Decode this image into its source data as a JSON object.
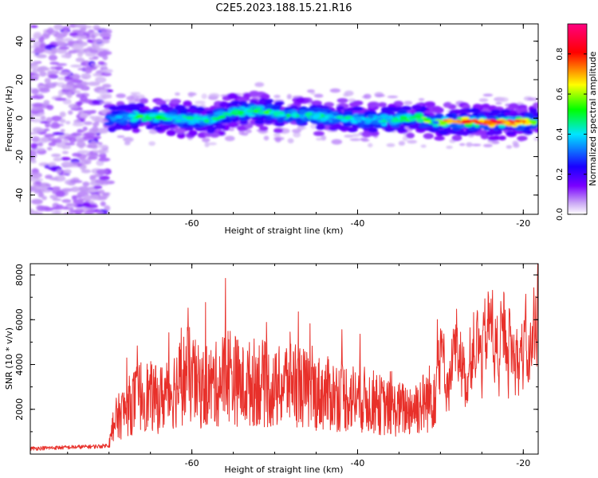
{
  "figure": {
    "title": "C2E5.2023.188.15.21.R16"
  },
  "chart_data": [
    {
      "type": "heatmap",
      "title": "",
      "xlabel": "Height of straight line (km)",
      "ylabel": "Frequency (Hz)",
      "xlim": [
        -79.5,
        -18.2
      ],
      "ylim": [
        -50,
        49
      ],
      "x_ticks": [
        "-60",
        "-40",
        "-20"
      ],
      "y_ticks": [
        "-40",
        "-20",
        "0",
        "20",
        "40"
      ],
      "grid": false,
      "colorbar": {
        "label": "Normalized spectral amplitude",
        "range": [
          0,
          0.95
        ],
        "ticks": [
          "0.0",
          "0.2",
          "0.4",
          "0.6",
          "0.8"
        ],
        "colors": [
          "#ffffff",
          "#c9a6f5",
          "#7a00ff",
          "#1a00ff",
          "#00e5ff",
          "#00ff00",
          "#ffff00",
          "#ff0000",
          "#ff0080"
        ]
      },
      "signal_track": {
        "x": [
          -69,
          -66,
          -62,
          -58,
          -55,
          -52,
          -49,
          -45,
          -41,
          -37,
          -33,
          -30,
          -27,
          -24,
          -21,
          -18.5
        ],
        "freq": [
          0,
          1,
          0,
          -1,
          3,
          4,
          2,
          1,
          0,
          -1,
          0,
          -2,
          -2,
          -2,
          -2,
          -2
        ],
        "amplitude": [
          0.35,
          0.55,
          0.45,
          0.45,
          0.5,
          0.55,
          0.5,
          0.45,
          0.45,
          0.45,
          0.55,
          0.75,
          0.8,
          0.85,
          0.9,
          0.6
        ]
      },
      "noise_region_x": [
        -79.5,
        -70
      ]
    },
    {
      "type": "line",
      "title": "",
      "xlabel": "Height of straight line (km)",
      "ylabel": "SNR (10 * v/v)",
      "xlim": [
        -79.5,
        -18.2
      ],
      "ylim": [
        0,
        8500
      ],
      "x_ticks": [
        "-60",
        "-40",
        "-20"
      ],
      "y_ticks": [
        "2000",
        "4000",
        "6000",
        "8000"
      ],
      "grid": false,
      "color": "#e8302a",
      "series": [
        {
          "x": [
            -79.5,
            -75,
            -71,
            -70,
            -69.5,
            -68,
            -66,
            -64,
            -62,
            -60.5,
            -59,
            -57,
            -55.5,
            -54,
            -52,
            -50,
            -48,
            -46,
            -44,
            -42,
            -40,
            -38,
            -36,
            -34,
            -32,
            -31,
            -30,
            -29,
            -28,
            -27,
            -26,
            -25,
            -24,
            -23,
            -22,
            -21,
            -20,
            -19,
            -18.2
          ],
          "y": [
            250,
            300,
            350,
            400,
            1400,
            2000,
            2700,
            2400,
            3000,
            3600,
            2900,
            3100,
            3700,
            3000,
            3300,
            2800,
            3400,
            2800,
            2700,
            2600,
            2500,
            2300,
            2000,
            2000,
            2300,
            2600,
            4300,
            3300,
            5200,
            3200,
            5200,
            4300,
            5900,
            4000,
            5200,
            4100,
            4700,
            4500,
            7500
          ]
        }
      ]
    }
  ]
}
